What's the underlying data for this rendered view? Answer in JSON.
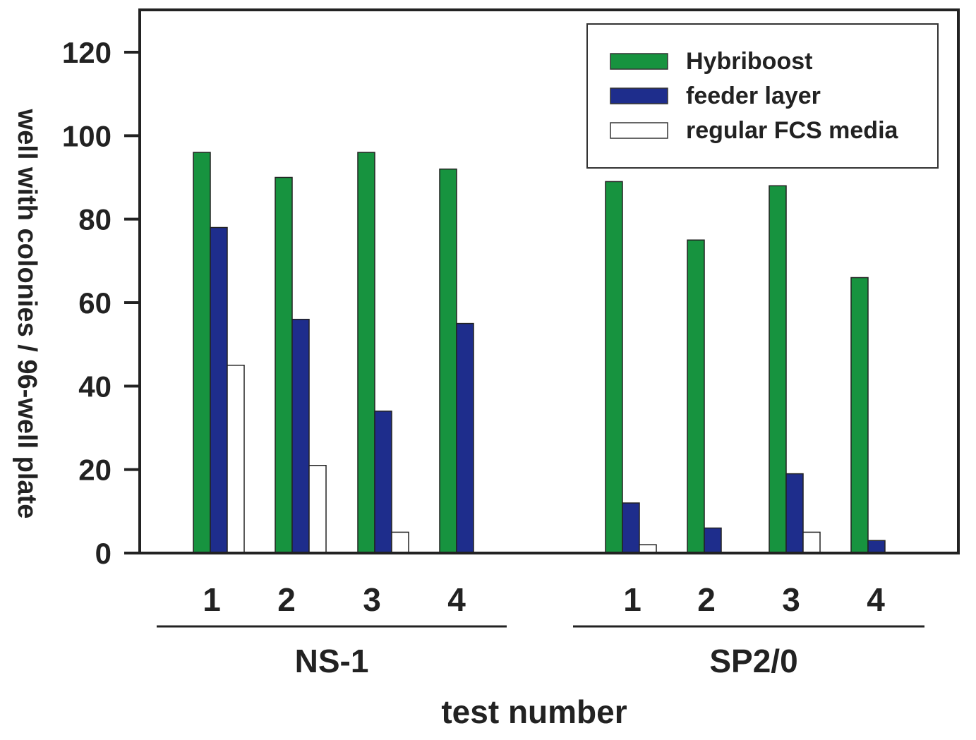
{
  "chart_data": {
    "type": "bar",
    "xlabel": "test number",
    "ylabel": "well with colonies / 96-well plate",
    "ylim": [
      0,
      130
    ],
    "yticks": [
      "0",
      "20",
      "40",
      "60",
      "80",
      "100",
      "120"
    ],
    "grid": false,
    "legend_position": "top-right",
    "groups": [
      {
        "label": "NS-1",
        "categories": [
          "1",
          "2",
          "3",
          "4"
        ]
      },
      {
        "label": "SP2/0",
        "categories": [
          "1",
          "2",
          "3",
          "4"
        ]
      }
    ],
    "series": [
      {
        "name": "Hybriboost",
        "color": "#17933f",
        "values": [
          [
            96,
            90,
            96,
            92
          ],
          [
            89,
            75,
            88,
            66
          ]
        ]
      },
      {
        "name": "feeder layer",
        "color": "#1e2d8c",
        "values": [
          [
            78,
            56,
            34,
            55
          ],
          [
            12,
            6,
            19,
            3
          ]
        ]
      },
      {
        "name": "regular FCS media",
        "color": "#ffffff",
        "values": [
          [
            45,
            21,
            5,
            0
          ],
          [
            2,
            0,
            5,
            0
          ]
        ]
      }
    ]
  }
}
